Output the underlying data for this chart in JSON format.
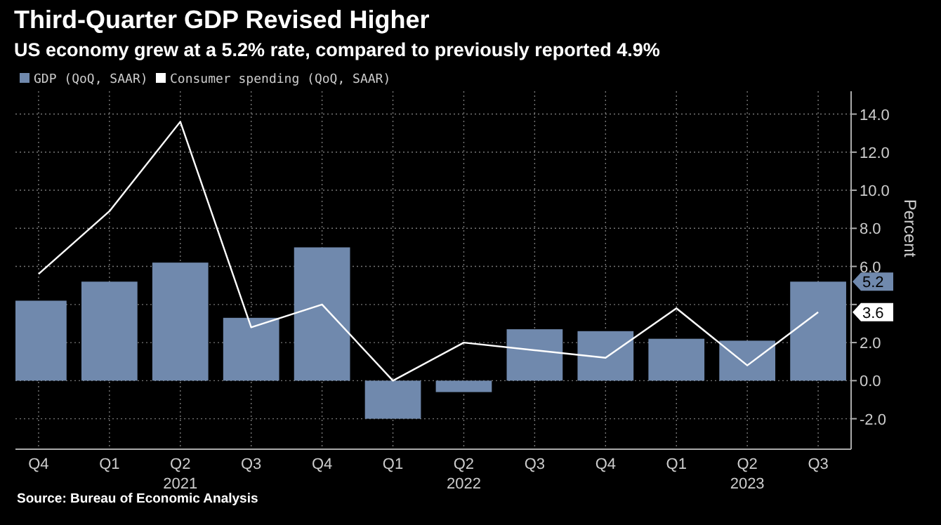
{
  "chart_data": {
    "type": "bar",
    "title": "Third-Quarter GDP Revised Higher",
    "subtitle": "US economy grew at a 5.2% rate, compared to previously reported 4.9%",
    "ylabel": "Percent",
    "categories": [
      "Q4",
      "Q1",
      "Q2\n2021",
      "Q3",
      "Q4",
      "Q1",
      "Q2\n2022",
      "Q3",
      "Q4",
      "Q1",
      "Q2\n2023",
      "Q3"
    ],
    "series": [
      {
        "name": "GDP (QoQ, SAAR)",
        "color": "#7089ad",
        "values": [
          4.2,
          5.2,
          6.2,
          3.3,
          7.0,
          -2.0,
          -0.6,
          2.7,
          2.6,
          2.2,
          2.1,
          5.2
        ]
      },
      {
        "name": "Consumer spending (QoQ, SAAR)",
        "color": "#ffffff",
        "type": "line",
        "values": [
          5.6,
          8.9,
          13.6,
          2.8,
          4.0,
          0.0,
          2.0,
          1.6,
          1.2,
          3.8,
          0.8,
          3.6
        ]
      }
    ],
    "ylim": [
      -3.6,
      15.2
    ],
    "yticks": [
      {
        "value": -2,
        "label": "-2.0"
      },
      {
        "value": 0,
        "label": "0.0"
      },
      {
        "value": 2,
        "label": "2.0"
      },
      {
        "value": 4,
        "label": null
      },
      {
        "value": 6,
        "label": "6.0"
      },
      {
        "value": 8,
        "label": "8.0"
      },
      {
        "value": 10,
        "label": "10.0"
      },
      {
        "value": 12,
        "label": "12.0"
      },
      {
        "value": 14,
        "label": "14.0"
      }
    ],
    "grid": true,
    "legend": "top left",
    "marker": "none",
    "line_style": "solid",
    "annotations": [
      "Source: Bureau of Economic Analysis",
      {
        "text": "5.2",
        "y": 5.2
      },
      {
        "text": "3.6",
        "y": 3.6
      }
    ]
  }
}
